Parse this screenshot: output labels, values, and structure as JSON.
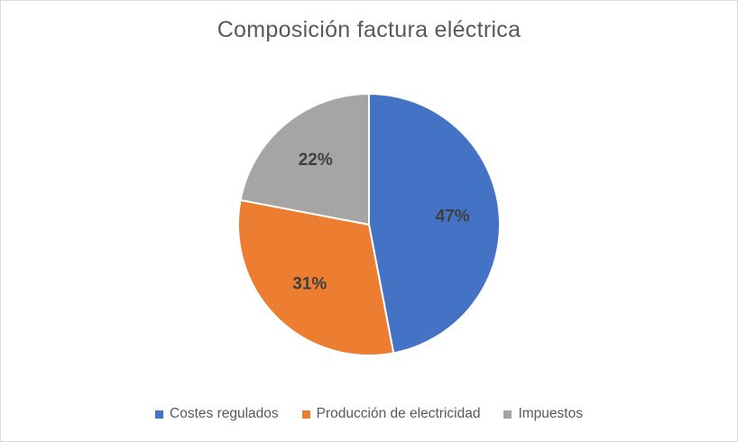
{
  "chart_data": {
    "type": "pie",
    "title": "Composición factura eléctrica",
    "categories": [
      "Costes regulados",
      "Producción de electricidad",
      "Impuestos"
    ],
    "values": [
      47,
      31,
      22
    ],
    "data_labels": [
      "47%",
      "31%",
      "22%"
    ],
    "colors": [
      "#4472c4",
      "#ed7d31",
      "#a5a5a5"
    ],
    "start_angle_deg": 0,
    "direction": "clockwise",
    "legend_position": "bottom"
  }
}
